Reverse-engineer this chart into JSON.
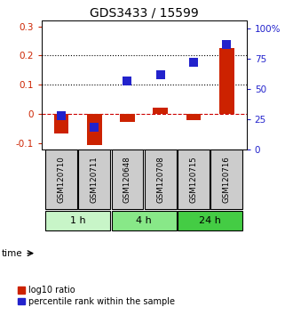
{
  "title": "GDS3433 / 15599",
  "samples": [
    "GSM120710",
    "GSM120711",
    "GSM120648",
    "GSM120708",
    "GSM120715",
    "GSM120716"
  ],
  "log10_ratio": [
    -0.065,
    -0.105,
    -0.028,
    0.022,
    -0.02,
    0.225
  ],
  "percentile_rank_pct": [
    28,
    18,
    57,
    62,
    72,
    87
  ],
  "groups": [
    {
      "label": "1 h",
      "indices": [
        0,
        1
      ],
      "color": "#c8f5c8"
    },
    {
      "label": "4 h",
      "indices": [
        2,
        3
      ],
      "color": "#88e888"
    },
    {
      "label": "24 h",
      "indices": [
        4,
        5
      ],
      "color": "#44cc44"
    }
  ],
  "ylim_left": [
    -0.12,
    0.32
  ],
  "ylim_right": [
    0,
    107
  ],
  "yticks_left": [
    -0.1,
    0.0,
    0.1,
    0.2,
    0.3
  ],
  "yticks_right": [
    0,
    25,
    50,
    75,
    100
  ],
  "ytick_labels_left": [
    "-0.1",
    "0",
    "0.1",
    "0.2",
    "0.3"
  ],
  "ytick_labels_right": [
    "0",
    "25",
    "50",
    "75",
    "100%"
  ],
  "hlines": [
    0.1,
    0.2
  ],
  "bar_color_red": "#cc2200",
  "bar_color_blue": "#2222cc",
  "zero_line_color": "#cc0000",
  "sample_box_color": "#cccccc",
  "title_fontsize": 10,
  "tick_fontsize": 7.5,
  "legend_fontsize": 7,
  "bar_width": 0.45,
  "square_size": 60
}
